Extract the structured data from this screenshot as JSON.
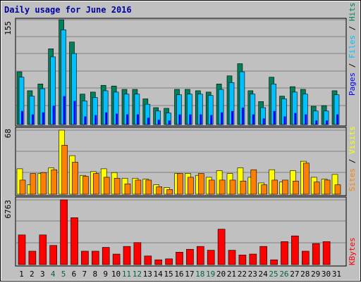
{
  "title": "Daily usage for June 2016",
  "colors": {
    "background": "#c0c0c0",
    "panel": "#c0c0c0",
    "gridline": "#808080",
    "title": "#0000a0",
    "axis_text": "#000000",
    "weekend_text": "#006644",
    "hits": "#00805c",
    "files": "#00c0ff",
    "pages": "#0000ff",
    "visits": "#ffff00",
    "sites": "#ff8000",
    "kbytes": "#ff0000",
    "separator": "#000000"
  },
  "chart_data": [
    {
      "type": "bar",
      "name": "hits-files-pages",
      "categories": [
        "1",
        "2",
        "3",
        "4",
        "5",
        "6",
        "7",
        "8",
        "9",
        "10",
        "11",
        "12",
        "13",
        "14",
        "15",
        "16",
        "17",
        "18",
        "19",
        "20",
        "21",
        "22",
        "23",
        "24",
        "25",
        "26",
        "27",
        "28",
        "29",
        "30",
        "31"
      ],
      "weekend_days": [
        "4",
        "5",
        "11",
        "12",
        "18",
        "19",
        "25",
        "26"
      ],
      "ymax_label": "155",
      "ylim": [
        0,
        155
      ],
      "right_labels": [
        "Pages",
        "Files",
        "Hits"
      ],
      "series": [
        {
          "name": "Hits",
          "color_key": "hits",
          "values": [
            78,
            50,
            60,
            112,
            155,
            122,
            45,
            48,
            58,
            57,
            52,
            52,
            38,
            25,
            24,
            52,
            52,
            50,
            48,
            60,
            72,
            90,
            50,
            34,
            70,
            42,
            56,
            52,
            27,
            28,
            50
          ]
        },
        {
          "name": "Files",
          "color_key": "files",
          "values": [
            70,
            42,
            53,
            100,
            140,
            105,
            35,
            40,
            50,
            48,
            45,
            45,
            30,
            20,
            17,
            44,
            45,
            45,
            43,
            52,
            62,
            78,
            45,
            25,
            60,
            38,
            48,
            45,
            20,
            20,
            44
          ]
        },
        {
          "name": "Pages",
          "color_key": "pages",
          "values": [
            20,
            15,
            18,
            28,
            42,
            35,
            12,
            14,
            18,
            16,
            15,
            15,
            10,
            7,
            6,
            15,
            15,
            15,
            14,
            18,
            20,
            25,
            15,
            9,
            20,
            12,
            17,
            15,
            6,
            6,
            15
          ]
        }
      ]
    },
    {
      "type": "bar",
      "name": "visits-sites",
      "categories": [
        "1",
        "2",
        "3",
        "4",
        "5",
        "6",
        "7",
        "8",
        "9",
        "10",
        "11",
        "12",
        "13",
        "14",
        "15",
        "16",
        "17",
        "18",
        "19",
        "20",
        "21",
        "22",
        "23",
        "24",
        "25",
        "26",
        "27",
        "28",
        "29",
        "30",
        "31"
      ],
      "ymax_label": "68",
      "ylim": [
        0,
        68
      ],
      "right_labels": [
        "Sites",
        "Visits"
      ],
      "series": [
        {
          "name": "Visits",
          "color_key": "visits",
          "values": [
            27,
            10,
            22,
            28,
            68,
            41,
            20,
            24,
            27,
            23,
            17,
            17,
            16,
            10,
            7,
            22,
            22,
            20,
            18,
            25,
            22,
            28,
            18,
            12,
            26,
            13,
            25,
            35,
            18,
            16,
            21
          ]
        },
        {
          "name": "Sites",
          "color_key": "sites",
          "values": [
            15,
            22,
            23,
            26,
            52,
            34,
            19,
            22,
            18,
            17,
            11,
            15,
            15,
            8,
            5,
            22,
            18,
            22,
            15,
            15,
            15,
            14,
            26,
            10,
            15,
            15,
            14,
            33,
            13,
            15,
            10
          ]
        }
      ]
    },
    {
      "type": "bar",
      "name": "kbytes",
      "categories": [
        "1",
        "2",
        "3",
        "4",
        "5",
        "6",
        "7",
        "8",
        "9",
        "10",
        "11",
        "12",
        "13",
        "14",
        "15",
        "16",
        "17",
        "18",
        "19",
        "20",
        "21",
        "22",
        "23",
        "24",
        "25",
        "26",
        "27",
        "28",
        "29",
        "30",
        "31"
      ],
      "ymax_label": "6763",
      "ylim": [
        0,
        6763
      ],
      "right_labels": [
        "KBytes"
      ],
      "series": [
        {
          "name": "KBytes",
          "color_key": "kbytes",
          "values": [
            3100,
            1400,
            3100,
            2000,
            6763,
            4900,
            1400,
            1400,
            1800,
            1100,
            1900,
            2300,
            900,
            500,
            600,
            1300,
            1600,
            1900,
            1500,
            3700,
            1500,
            1000,
            1100,
            1900,
            500,
            2400,
            3000,
            1400,
            2200,
            2400,
            0
          ]
        }
      ]
    }
  ],
  "x_axis": {
    "ticks": [
      "1",
      "2",
      "3",
      "4",
      "5",
      "6",
      "7",
      "8",
      "9",
      "10",
      "11",
      "12",
      "13",
      "14",
      "15",
      "16",
      "17",
      "18",
      "19",
      "20",
      "21",
      "22",
      "23",
      "24",
      "25",
      "26",
      "27",
      "28",
      "29",
      "30",
      "31"
    ],
    "weekend_ticks": [
      "4",
      "5",
      "11",
      "12",
      "18",
      "19",
      "25",
      "26"
    ]
  },
  "right_axis": {
    "panel1": [
      {
        "text": "Pages",
        "color_key": "pages"
      },
      {
        "text": " / ",
        "color_key": "axis_text"
      },
      {
        "text": "Files",
        "color_key": "files"
      },
      {
        "text": " / ",
        "color_key": "axis_text"
      },
      {
        "text": "Hits",
        "color_key": "hits"
      }
    ],
    "panel2": [
      {
        "text": "Sites",
        "color_key": "sites"
      },
      {
        "text": " / ",
        "color_key": "axis_text"
      },
      {
        "text": "Visits",
        "color_key": "visits"
      }
    ],
    "panel3": [
      {
        "text": "KBytes",
        "color_key": "kbytes"
      }
    ]
  }
}
